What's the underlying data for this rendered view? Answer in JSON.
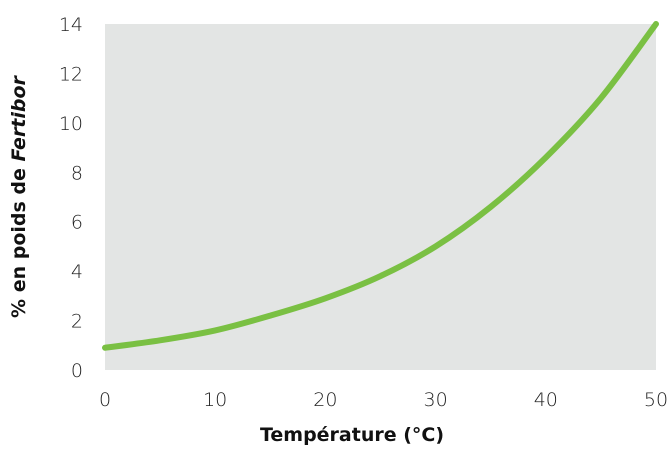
{
  "colors": {
    "plot_background": "#e3e5e4",
    "curve": "#7ac043",
    "text": "#222222"
  },
  "chart_data": {
    "type": "line",
    "title": "",
    "xlabel": "Température (°C)",
    "ylabel_prefix": "%  en poids de ",
    "ylabel_emphasis": "Fertibor",
    "xlim": [
      0,
      50
    ],
    "ylim": [
      0,
      14
    ],
    "x_ticks": [
      "0",
      "10",
      "20",
      "30",
      "40",
      "50"
    ],
    "y_ticks": [
      "0",
      "2",
      "4",
      "6",
      "8",
      "10",
      "12",
      "14"
    ],
    "grid": false,
    "series": [
      {
        "x": [
          0,
          5,
          10,
          15,
          20,
          25,
          30,
          35,
          40,
          45,
          50
        ],
        "y": [
          0.9,
          1.2,
          1.6,
          2.2,
          2.9,
          3.8,
          5.0,
          6.6,
          8.6,
          11.0,
          14.0
        ]
      }
    ]
  }
}
